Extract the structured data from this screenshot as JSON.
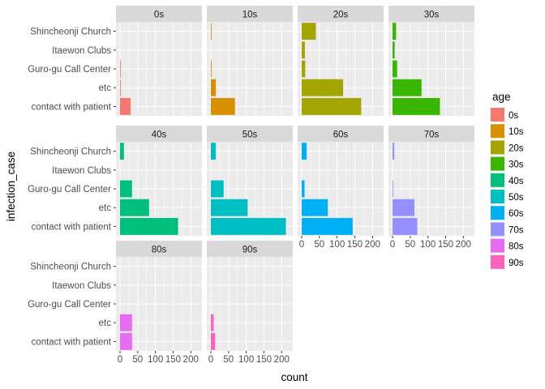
{
  "chart_data": {
    "type": "bar",
    "orientation": "horizontal",
    "layout": "facet_wrap",
    "xlabel": "count",
    "ylabel": "infection_case",
    "xlim": [
      0,
      220
    ],
    "xticks": [
      0,
      50,
      100,
      150,
      200
    ],
    "xtick_labels": [
      "0",
      "50",
      "100",
      "150",
      "200"
    ],
    "categories": [
      "Shincheonji Church",
      "Itaewon Clubs",
      "Guro-gu Call Center",
      "etc",
      "contact with patient"
    ],
    "grid": true,
    "legend": {
      "title": "age",
      "position": "right",
      "entries": [
        "0s",
        "10s",
        "20s",
        "30s",
        "40s",
        "50s",
        "60s",
        "70s",
        "80s",
        "90s"
      ],
      "colors": [
        "#F8766D",
        "#D89000",
        "#A3A500",
        "#39B600",
        "#00BF7D",
        "#00BFC4",
        "#00B0F6",
        "#9590FF",
        "#E76BF3",
        "#FF62BC"
      ]
    },
    "panel_background": "#EBEBEB",
    "strip_background": "#D9D9D9",
    "facets": [
      {
        "label": "0s",
        "values": [
          0,
          0,
          2,
          2,
          30
        ]
      },
      {
        "label": "10s",
        "values": [
          2,
          0,
          2,
          14,
          68
        ]
      },
      {
        "label": "20s",
        "values": [
          40,
          9,
          10,
          117,
          168
        ]
      },
      {
        "label": "30s",
        "values": [
          10,
          6,
          13,
          82,
          134
        ]
      },
      {
        "label": "40s",
        "values": [
          11,
          0,
          34,
          82,
          164
        ]
      },
      {
        "label": "50s",
        "values": [
          14,
          0,
          36,
          104,
          212
        ]
      },
      {
        "label": "60s",
        "values": [
          14,
          0,
          8,
          74,
          144
        ]
      },
      {
        "label": "70s",
        "values": [
          5,
          0,
          2,
          62,
          70
        ]
      },
      {
        "label": "80s",
        "values": [
          0,
          0,
          0,
          34,
          34
        ]
      },
      {
        "label": "90s",
        "values": [
          0,
          0,
          0,
          8,
          12
        ]
      }
    ]
  }
}
